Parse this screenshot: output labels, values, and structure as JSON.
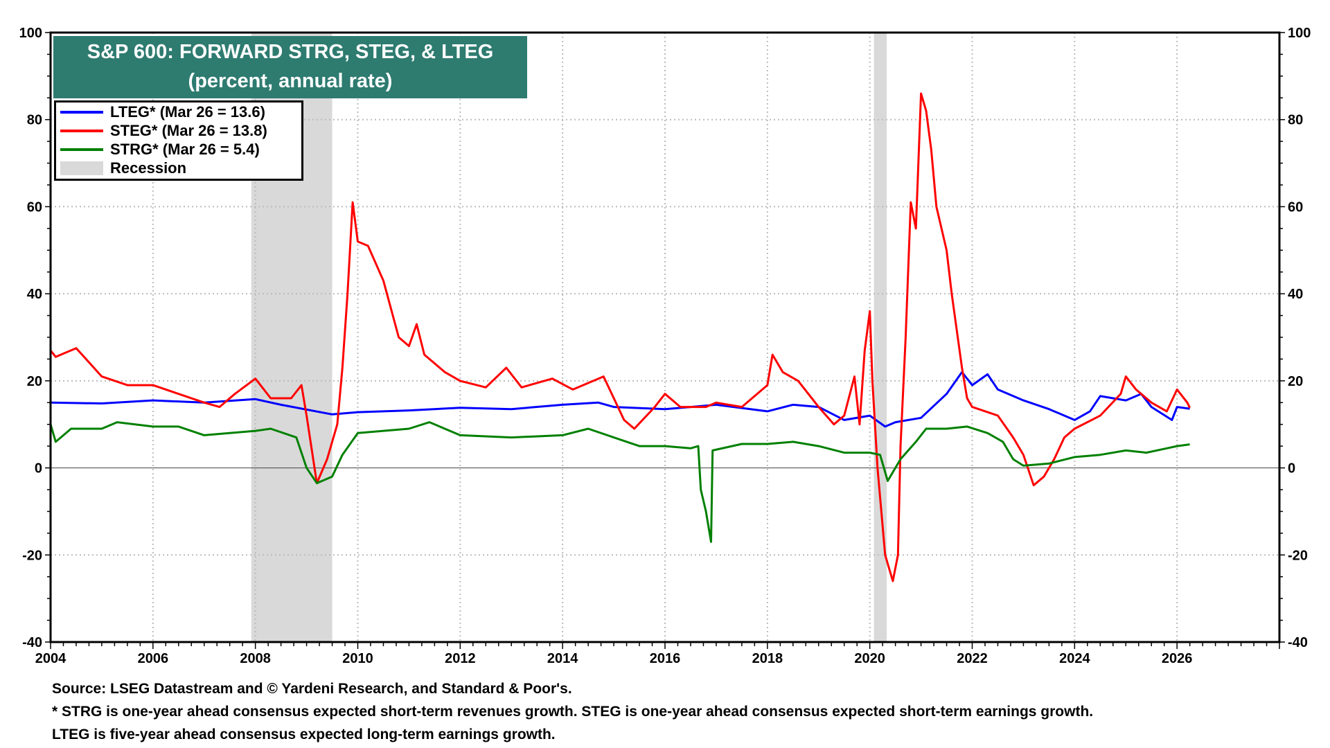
{
  "chart_data": {
    "type": "line",
    "title": "S&P 600: FORWARD STRG, STEG, & LTEG",
    "subtitle": "(percent, annual rate)",
    "xlim": [
      2004,
      2028
    ],
    "ylim": [
      -40,
      100
    ],
    "x_ticks": [
      "2004",
      "2006",
      "2008",
      "2010",
      "2012",
      "2014",
      "2016",
      "2018",
      "2020",
      "2022",
      "2024",
      "2026"
    ],
    "y_ticks": [
      "100",
      "80",
      "60",
      "40",
      "20",
      "0",
      "-20",
      "-40"
    ],
    "grid": true,
    "legend_placement": "top-left",
    "recessions": [
      [
        2007.92,
        2009.5
      ],
      [
        2020.08,
        2020.33
      ]
    ],
    "recession_label": "Recession",
    "recession_color": "#d9d9d9",
    "series": [
      {
        "name": "LTEG* (Mar 26 = 13.6)",
        "color": "#0000ff",
        "points": [
          [
            2004,
            15
          ],
          [
            2005,
            14.8
          ],
          [
            2006,
            15.5
          ],
          [
            2007,
            15
          ],
          [
            2008,
            15.8
          ],
          [
            2008.5,
            14.5
          ],
          [
            2009.5,
            12.3
          ],
          [
            2010,
            12.8
          ],
          [
            2011,
            13.2
          ],
          [
            2012,
            13.8
          ],
          [
            2013,
            13.5
          ],
          [
            2014,
            14.5
          ],
          [
            2014.7,
            15
          ],
          [
            2015,
            14
          ],
          [
            2016,
            13.5
          ],
          [
            2016.5,
            14
          ],
          [
            2017,
            14.5
          ],
          [
            2018,
            13
          ],
          [
            2018.5,
            14.5
          ],
          [
            2019,
            14
          ],
          [
            2019.5,
            11
          ],
          [
            2020,
            12
          ],
          [
            2020.3,
            9.5
          ],
          [
            2020.5,
            10.5
          ],
          [
            2021,
            11.5
          ],
          [
            2021.5,
            17
          ],
          [
            2021.8,
            22
          ],
          [
            2022,
            19
          ],
          [
            2022.3,
            21.5
          ],
          [
            2022.5,
            18
          ],
          [
            2023,
            15.5
          ],
          [
            2023.5,
            13.5
          ],
          [
            2024,
            11
          ],
          [
            2024.3,
            13
          ],
          [
            2024.5,
            16.5
          ],
          [
            2025,
            15.5
          ],
          [
            2025.3,
            17
          ],
          [
            2025.5,
            14
          ],
          [
            2025.9,
            11
          ],
          [
            2026,
            14
          ],
          [
            2026.25,
            13.6
          ]
        ]
      },
      {
        "name": "STEG* (Mar 26 = 13.8)",
        "color": "#ff0000",
        "points": [
          [
            2004,
            27
          ],
          [
            2004.1,
            25.5
          ],
          [
            2004.5,
            27.5
          ],
          [
            2005,
            21
          ],
          [
            2005.5,
            19
          ],
          [
            2006,
            19
          ],
          [
            2006.5,
            17
          ],
          [
            2007,
            15
          ],
          [
            2007.3,
            14
          ],
          [
            2007.6,
            17
          ],
          [
            2008,
            20.5
          ],
          [
            2008.3,
            16
          ],
          [
            2008.7,
            16
          ],
          [
            2008.9,
            19
          ],
          [
            2009,
            12
          ],
          [
            2009.2,
            -3.5
          ],
          [
            2009.4,
            2
          ],
          [
            2009.6,
            10
          ],
          [
            2009.7,
            23
          ],
          [
            2009.8,
            40
          ],
          [
            2009.9,
            61
          ],
          [
            2010,
            52
          ],
          [
            2010.2,
            51
          ],
          [
            2010.5,
            43
          ],
          [
            2010.8,
            30
          ],
          [
            2011,
            28
          ],
          [
            2011.15,
            33
          ],
          [
            2011.3,
            26
          ],
          [
            2011.7,
            22
          ],
          [
            2012,
            20
          ],
          [
            2012.5,
            18.5
          ],
          [
            2012.9,
            23
          ],
          [
            2013.2,
            18.5
          ],
          [
            2013.8,
            20.5
          ],
          [
            2014.2,
            18
          ],
          [
            2014.8,
            21
          ],
          [
            2015.2,
            11
          ],
          [
            2015.4,
            9
          ],
          [
            2015.8,
            14
          ],
          [
            2016,
            17
          ],
          [
            2016.3,
            14
          ],
          [
            2016.8,
            14
          ],
          [
            2017,
            15
          ],
          [
            2017.5,
            14
          ],
          [
            2018,
            19
          ],
          [
            2018.1,
            26
          ],
          [
            2018.3,
            22
          ],
          [
            2018.6,
            20
          ],
          [
            2019,
            14
          ],
          [
            2019.3,
            10
          ],
          [
            2019.5,
            12
          ],
          [
            2019.7,
            21
          ],
          [
            2019.8,
            10
          ],
          [
            2019.9,
            27
          ],
          [
            2020,
            36
          ],
          [
            2020.05,
            20
          ],
          [
            2020.15,
            0
          ],
          [
            2020.3,
            -20
          ],
          [
            2020.45,
            -26
          ],
          [
            2020.55,
            -20
          ],
          [
            2020.6,
            5
          ],
          [
            2020.7,
            30
          ],
          [
            2020.8,
            61
          ],
          [
            2020.9,
            55
          ],
          [
            2021,
            86
          ],
          [
            2021.1,
            82
          ],
          [
            2021.2,
            73
          ],
          [
            2021.3,
            60
          ],
          [
            2021.5,
            50
          ],
          [
            2021.6,
            40
          ],
          [
            2021.8,
            23
          ],
          [
            2021.9,
            16
          ],
          [
            2022,
            14
          ],
          [
            2022.5,
            12
          ],
          [
            2022.8,
            7
          ],
          [
            2023,
            3
          ],
          [
            2023.2,
            -4
          ],
          [
            2023.4,
            -2
          ],
          [
            2023.6,
            2
          ],
          [
            2023.8,
            7
          ],
          [
            2024,
            9
          ],
          [
            2024.5,
            12
          ],
          [
            2024.9,
            17
          ],
          [
            2025,
            21
          ],
          [
            2025.2,
            18
          ],
          [
            2025.5,
            15
          ],
          [
            2025.8,
            13
          ],
          [
            2026,
            18
          ],
          [
            2026.2,
            15
          ],
          [
            2026.25,
            13.8
          ]
        ]
      },
      {
        "name": "STRG* (Mar 26 = 5.4)",
        "color": "#008000",
        "points": [
          [
            2004,
            10
          ],
          [
            2004.1,
            6
          ],
          [
            2004.4,
            9
          ],
          [
            2005,
            9
          ],
          [
            2005.3,
            10.5
          ],
          [
            2006,
            9.5
          ],
          [
            2006.5,
            9.5
          ],
          [
            2007,
            7.5
          ],
          [
            2007.5,
            8
          ],
          [
            2008,
            8.5
          ],
          [
            2008.3,
            9
          ],
          [
            2008.8,
            7
          ],
          [
            2009,
            0
          ],
          [
            2009.2,
            -3.5
          ],
          [
            2009.5,
            -2
          ],
          [
            2009.7,
            3
          ],
          [
            2010,
            8
          ],
          [
            2010.5,
            8.5
          ],
          [
            2011,
            9
          ],
          [
            2011.4,
            10.5
          ],
          [
            2012,
            7.5
          ],
          [
            2013,
            7
          ],
          [
            2014,
            7.5
          ],
          [
            2014.5,
            9
          ],
          [
            2015,
            7
          ],
          [
            2015.5,
            5
          ],
          [
            2016,
            5
          ],
          [
            2016.5,
            4.5
          ],
          [
            2016.65,
            5
          ],
          [
            2016.7,
            -5
          ],
          [
            2016.8,
            -10
          ],
          [
            2016.9,
            -17
          ],
          [
            2016.93,
            4
          ],
          [
            2017.5,
            5.5
          ],
          [
            2018,
            5.5
          ],
          [
            2018.5,
            6
          ],
          [
            2019,
            5
          ],
          [
            2019.5,
            3.5
          ],
          [
            2020,
            3.5
          ],
          [
            2020.2,
            3
          ],
          [
            2020.35,
            -3
          ],
          [
            2020.6,
            2
          ],
          [
            2020.9,
            6
          ],
          [
            2021.1,
            9
          ],
          [
            2021.5,
            9
          ],
          [
            2021.9,
            9.5
          ],
          [
            2022.3,
            8
          ],
          [
            2022.6,
            6
          ],
          [
            2022.8,
            2
          ],
          [
            2023,
            0.5
          ],
          [
            2023.5,
            1
          ],
          [
            2024,
            2.5
          ],
          [
            2024.5,
            3
          ],
          [
            2025,
            4
          ],
          [
            2025.4,
            3.5
          ],
          [
            2025.8,
            4.5
          ],
          [
            2026,
            5
          ],
          [
            2026.25,
            5.4
          ]
        ]
      }
    ],
    "notes": [
      "Source: LSEG Datastream and © Yardeni Research, and Standard & Poor's.",
      "* STRG is one-year ahead consensus expected short-term revenues growth. STEG is one-year ahead consensus expected short-term earnings growth.",
      "LTEG is five-year ahead consensus expected long-term earnings growth."
    ]
  }
}
